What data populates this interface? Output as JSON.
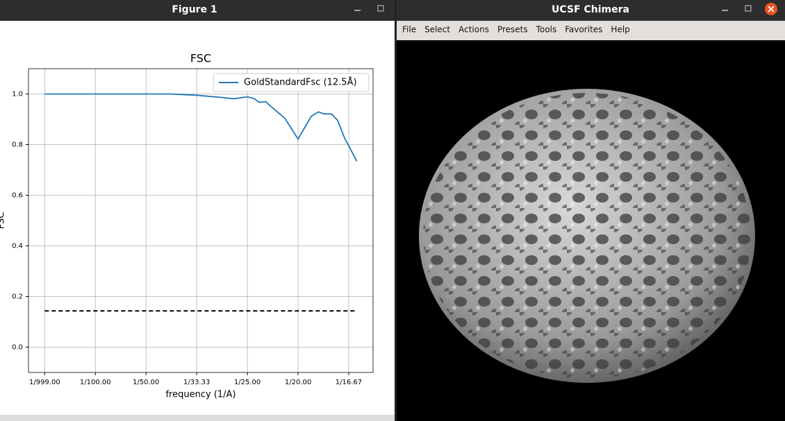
{
  "windows": [
    {
      "title": "Figure 1"
    },
    {
      "title": "UCSF Chimera",
      "menu": [
        "File",
        "Select",
        "Actions",
        "Presets",
        "Tools",
        "Favorites",
        "Help"
      ]
    }
  ],
  "chart_data": {
    "type": "line",
    "title": "FSC",
    "x_label": "frequency (1/A)",
    "y_label": "FSC",
    "x": [
      0,
      0.005,
      0.01,
      0.015,
      0.02,
      0.0248,
      0.03,
      0.0351,
      0.0374,
      0.04,
      0.0414,
      0.0423,
      0.0436,
      0.0448,
      0.0474,
      0.05,
      0.0526,
      0.054,
      0.0552,
      0.0566,
      0.0578,
      0.0592,
      0.0603,
      0.0616
    ],
    "series": [
      {
        "name": "GoldStandardFsc (12.5Å)",
        "color": "#1f77b4",
        "values": [
          1.0,
          1.0,
          1.0,
          1.0,
          1.0,
          1.0,
          0.995,
          0.986,
          0.981,
          0.989,
          0.981,
          0.967,
          0.97,
          0.948,
          0.904,
          0.822,
          0.912,
          0.929,
          0.921,
          0.921,
          0.896,
          0.825,
          0.784,
          0.734
        ]
      }
    ],
    "reference_line": {
      "y": 0.143,
      "x": [
        0,
        0.0616
      ],
      "color": "#000000"
    },
    "xlim": [
      -0.0032,
      0.0648
    ],
    "ylim": [
      -0.1,
      1.1
    ],
    "xticks": [
      {
        "value": 0,
        "label": "1/999.00"
      },
      {
        "value": 0.01,
        "label": "1/100.00"
      },
      {
        "value": 0.02,
        "label": "1/50.00"
      },
      {
        "value": 0.03,
        "label": "1/33.33"
      },
      {
        "value": 0.04,
        "label": "1/25.00"
      },
      {
        "value": 0.05,
        "label": "1/20.00"
      },
      {
        "value": 0.06,
        "label": "1/16.67"
      }
    ],
    "yticks": [
      {
        "value": 0,
        "label": "0.0"
      },
      0.2,
      0.4,
      0.6,
      0.8,
      {
        "value": 1,
        "label": "1.0"
      }
    ],
    "grid": true,
    "legend": "upper right"
  }
}
